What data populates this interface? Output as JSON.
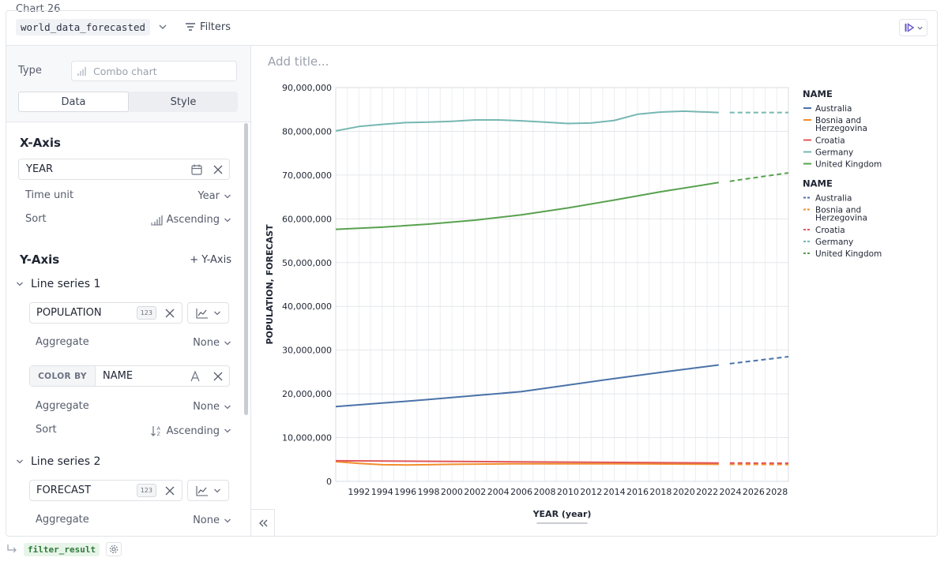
{
  "cell": {
    "title": "Chart 26",
    "dataset": "world_data_forecasted",
    "filters_label": "Filters"
  },
  "config": {
    "type_label": "Type",
    "type_placeholder": "Combo chart",
    "tabs": [
      "Data",
      "Style"
    ],
    "x_axis": {
      "title": "X-Axis",
      "field": "YEAR",
      "time_unit_label": "Time unit",
      "time_unit_value": "Year",
      "sort_label": "Sort",
      "sort_value": "Ascending"
    },
    "y_axis": {
      "title": "Y-Axis",
      "add_label": "+ Y-Axis",
      "series1": {
        "title": "Line series 1",
        "field": "POPULATION",
        "badge": "123",
        "aggregate_label": "Aggregate",
        "aggregate_value": "None",
        "color_by_tag": "COLOR BY",
        "color_by_field": "NAME",
        "aggregate2_label": "Aggregate",
        "aggregate2_value": "None",
        "sort_label": "Sort",
        "sort_value": "Ascending"
      },
      "series2": {
        "title": "Line series 2",
        "field": "FORECAST",
        "badge": "123",
        "aggregate_label": "Aggregate",
        "aggregate_value": "None"
      }
    }
  },
  "chart": {
    "add_title_placeholder": "Add title..."
  },
  "footer": {
    "output_name": "filter_result"
  },
  "chart_data": {
    "type": "line",
    "xlabel": "YEAR (year)",
    "ylabel": "POPULATION, FORECAST",
    "ylim": [
      0,
      90000000
    ],
    "xlim": [
      1990,
      2029
    ],
    "y_ticks": [
      "0",
      "10,000,000",
      "20,000,000",
      "30,000,000",
      "40,000,000",
      "50,000,000",
      "60,000,000",
      "70,000,000",
      "80,000,000",
      "90,000,000"
    ],
    "x_ticks": [
      "1992",
      "1994",
      "1996",
      "1998",
      "2000",
      "2002",
      "2004",
      "2006",
      "2008",
      "2010",
      "2012",
      "2014",
      "2016",
      "2018",
      "2020",
      "2022",
      "2024",
      "2026",
      "2028"
    ],
    "legend_position": "right",
    "legend_groups": [
      {
        "title": "NAME",
        "style": "solid",
        "entries": [
          "Australia",
          "Bosnia and Herzegovina",
          "Croatia",
          "Germany",
          "United Kingdom"
        ]
      },
      {
        "title": "NAME",
        "style": "dashed",
        "entries": [
          "Australia",
          "Bosnia and Herzegovina",
          "Croatia",
          "Germany",
          "United Kingdom"
        ]
      }
    ],
    "colors": {
      "Australia": "#4a72a8",
      "Bosnia and Herzegovina": "#f28e2b",
      "Croatia": "#e15759",
      "Germany": "#76b7b2",
      "United Kingdom": "#59a14f"
    },
    "series": [
      {
        "name": "Australia",
        "kind": "POPULATION",
        "x": [
          1990,
          1994,
          1998,
          2002,
          2006,
          2010,
          2014,
          2018,
          2023
        ],
        "values": [
          17100000,
          17900000,
          18700000,
          19600000,
          20500000,
          22000000,
          23500000,
          24900000,
          26600000
        ]
      },
      {
        "name": "Bosnia and Herzegovina",
        "kind": "POPULATION",
        "x": [
          1990,
          1992,
          1994,
          1996,
          1998,
          2000,
          2005,
          2010,
          2015,
          2023
        ],
        "values": [
          4500000,
          4100000,
          3800000,
          3750000,
          3800000,
          3900000,
          4000000,
          4000000,
          4000000,
          3900000
        ]
      },
      {
        "name": "Croatia",
        "kind": "POPULATION",
        "x": [
          1990,
          2000,
          2010,
          2023
        ],
        "values": [
          4700000,
          4550000,
          4400000,
          4200000
        ]
      },
      {
        "name": "Germany",
        "kind": "POPULATION",
        "x": [
          1990,
          1992,
          1994,
          1996,
          1998,
          2000,
          2002,
          2004,
          2006,
          2008,
          2010,
          2012,
          2014,
          2016,
          2018,
          2020,
          2023
        ],
        "values": [
          80100000,
          81100000,
          81600000,
          82000000,
          82100000,
          82300000,
          82600000,
          82600000,
          82400000,
          82100000,
          81800000,
          81900000,
          82500000,
          83900000,
          84400000,
          84600000,
          84300000
        ]
      },
      {
        "name": "United Kingdom",
        "kind": "POPULATION",
        "x": [
          1990,
          1994,
          1998,
          2002,
          2006,
          2010,
          2014,
          2018,
          2023
        ],
        "values": [
          57600000,
          58100000,
          58800000,
          59700000,
          60900000,
          62500000,
          64300000,
          66200000,
          68300000
        ]
      },
      {
        "name": "Australia",
        "kind": "FORECAST",
        "x": [
          2023,
          2029
        ],
        "values": [
          26900000,
          28500000
        ]
      },
      {
        "name": "Bosnia and Herzegovina",
        "kind": "FORECAST",
        "x": [
          2023,
          2029
        ],
        "values": [
          3900000,
          3850000
        ]
      },
      {
        "name": "Croatia",
        "kind": "FORECAST",
        "x": [
          2023,
          2029
        ],
        "values": [
          4200000,
          4150000
        ]
      },
      {
        "name": "Germany",
        "kind": "FORECAST",
        "x": [
          2023,
          2029
        ],
        "values": [
          84300000,
          84300000
        ]
      },
      {
        "name": "United Kingdom",
        "kind": "FORECAST",
        "x": [
          2023,
          2029
        ],
        "values": [
          68600000,
          70500000
        ]
      }
    ]
  }
}
